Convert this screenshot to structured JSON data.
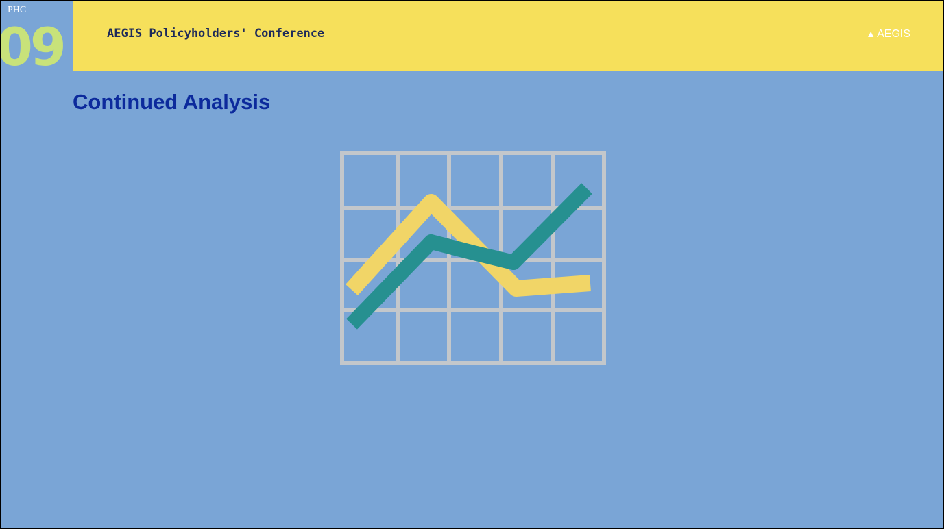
{
  "header": {
    "badge_label": "PHC",
    "badge_number": "09",
    "title": "AEGIS Policyholders' Conference",
    "logo": "AEGIS"
  },
  "slide": {
    "title": "Continued Analysis"
  }
}
